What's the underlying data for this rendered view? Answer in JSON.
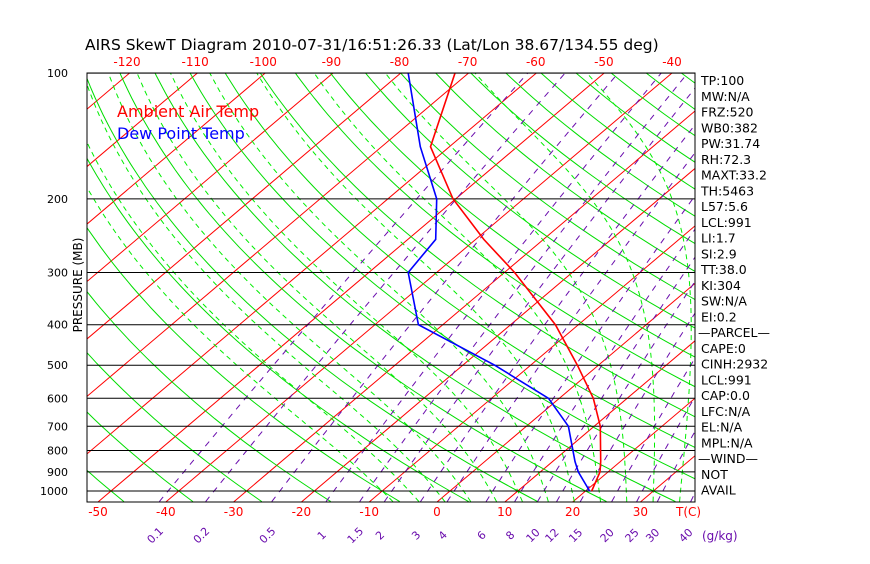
{
  "chart_data": {
    "type": "line",
    "title": "AIRS SkewT Diagram 2010-07-31/16:51:26.33 (Lat/Lon 38.67/134.55 deg)",
    "ylabel": "PRESSURE (MB)",
    "xlabel": "T(C)",
    "mixing_ratio_unit": "(g/kg)",
    "pressure_ticks": [
      100,
      200,
      300,
      400,
      500,
      600,
      700,
      800,
      900,
      1000
    ],
    "bottom_temp_ticks": [
      -50,
      -40,
      -30,
      -20,
      -10,
      0,
      10,
      20,
      30
    ],
    "top_temp_ticks": [
      -120,
      -110,
      -100,
      -90,
      -80,
      -70,
      -60,
      -50,
      -40
    ],
    "mixing_ratio_ticks": [
      "0.1",
      "0.2",
      "0.5",
      "1",
      "1.5",
      "2",
      "3",
      "4",
      "6",
      "8",
      "10",
      "12",
      "15",
      "20",
      "25",
      "30",
      "40"
    ],
    "ylim": [
      1050,
      100
    ],
    "xlim_at_bottom": [
      -52,
      38
    ],
    "legend": [
      {
        "label": "Ambient Air Temp",
        "color": "#ff0000"
      },
      {
        "label": "Dew Point Temp",
        "color": "#0000ff"
      }
    ],
    "series": [
      {
        "name": "Ambient Air Temp",
        "color": "#ff0000",
        "pressure": [
          1000,
          900,
          850,
          700,
          600,
          500,
          400,
          300,
          250,
          200,
          150,
          100
        ],
        "temperature": [
          20.9,
          18.8,
          17.1,
          10.9,
          5.0,
          -3.1,
          -13.4,
          -28.5,
          -38.8,
          -50.4,
          -62.8,
          -72.0
        ]
      },
      {
        "name": "Dew Point Temp",
        "color": "#0000ff",
        "pressure": [
          1000,
          900,
          850,
          700,
          600,
          500,
          400,
          300,
          250,
          200,
          150,
          100
        ],
        "temperature": [
          20.6,
          15.6,
          13.3,
          6.2,
          -1.6,
          -15.3,
          -33.6,
          -44.2,
          -45.9,
          -52.8,
          -64.3,
          -78.9
        ]
      }
    ],
    "colors": {
      "isotherm": "#ff0000",
      "dry_adiabat": "#00dd00",
      "moist_adiabat": "#00ee00",
      "mixing_ratio": "#6a0dad",
      "isobar": "#000000"
    }
  },
  "indices": [
    "TP:100",
    "MW:N/A",
    "FRZ:520",
    "WB0:382",
    "PW:31.74",
    "RH:72.3",
    "MAXT:33.2",
    "TH:5463",
    "L57:5.6",
    "LCL:991",
    "LI:1.7",
    "SI:2.9",
    "TT:38.0",
    "KI:304",
    "SW:N/A",
    "EI:0.2",
    "—PARCEL—",
    "CAPE:0",
    "CINH:2932",
    "LCL:991",
    "CAP:0.0",
    "LFC:N/A",
    "EL:N/A",
    "MPL:N/A",
    "—WIND—",
    "NOT",
    "AVAIL"
  ]
}
